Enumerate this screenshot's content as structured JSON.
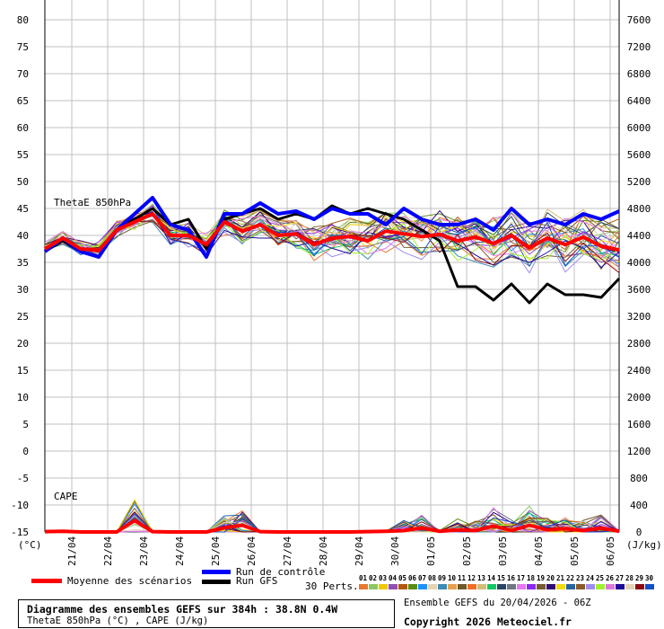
{
  "chart_data": {
    "type": "line",
    "title": "Diagramme des ensembles GEFS sur 384h : 38.8N 0.4W",
    "subtitle": "ThetaE 850hPa (°C) , CAPE (J/kg)",
    "run_info": "Ensemble GEFS du 20/04/2026 - 06Z",
    "copyright": "Copyright 2026 Meteociel.fr",
    "left_axis": {
      "label": "(°C)",
      "ylim": [
        -15,
        80
      ],
      "ticks": [
        80,
        75,
        70,
        65,
        60,
        55,
        50,
        45,
        40,
        35,
        30,
        25,
        20,
        15,
        10,
        5,
        0,
        -5,
        -10,
        -15
      ]
    },
    "right_axis": {
      "label": "(J/kg)",
      "ylim": [
        0,
        7600
      ],
      "ticks": [
        7600,
        7200,
        6800,
        6400,
        6000,
        5600,
        5200,
        4800,
        4400,
        4000,
        3600,
        3200,
        2800,
        2400,
        2000,
        1600,
        1200,
        800,
        400,
        0
      ]
    },
    "x_labels": [
      "21/04",
      "22/04",
      "23/04",
      "24/04",
      "25/04",
      "26/04",
      "27/04",
      "28/04",
      "29/04",
      "30/04",
      "01/05",
      "02/05",
      "03/05",
      "04/05",
      "05/05",
      "06/05"
    ],
    "x_step_hours": 12,
    "grid": true,
    "annotations": {
      "thetae": "ThetaE 850hPa",
      "cape": "CAPE"
    },
    "series": [
      {
        "name": "Moyenne des scénarios",
        "color": "#ff0000",
        "variable": "thetae",
        "values": [
          37.5,
          39.5,
          37.5,
          37.2,
          41,
          42.5,
          44,
          40,
          40,
          38.3,
          42.5,
          40.8,
          42,
          40,
          40.3,
          38.3,
          39.5,
          39.8,
          39,
          40.8,
          40.3,
          39.8,
          40.2,
          39,
          39.7,
          38.5,
          40,
          37.7,
          39.5,
          38.3,
          39.7,
          38,
          37.3
        ]
      },
      {
        "name": "Run de contrôle",
        "color": "#0000ff",
        "variable": "thetae",
        "values": [
          37,
          39.5,
          37,
          36,
          41,
          44,
          47,
          42,
          41,
          36,
          44,
          44,
          46,
          44,
          44.5,
          43,
          45,
          44,
          44,
          42,
          45,
          43,
          42,
          42,
          43,
          41,
          45,
          42,
          43,
          42,
          44,
          43,
          44.5
        ]
      },
      {
        "name": "Run GFS",
        "color": "#000000",
        "variable": "thetae",
        "values": [
          37,
          39,
          37,
          36,
          41,
          43,
          45,
          42,
          43,
          37.5,
          43,
          44,
          45,
          43,
          44,
          43,
          45.5,
          44,
          45,
          44,
          43,
          41,
          39,
          30.5,
          30.5,
          28,
          31,
          27.5,
          31,
          29,
          29,
          28.5,
          32
        ]
      },
      {
        "name": "Moyenne des scénarios CAPE",
        "color": "#ff0000",
        "variable": "cape",
        "values": [
          5,
          10,
          0,
          0,
          0,
          170,
          5,
          0,
          0,
          0,
          60,
          100,
          5,
          0,
          0,
          0,
          0,
          0,
          5,
          10,
          20,
          60,
          10,
          30,
          20,
          90,
          20,
          100,
          30,
          50,
          20,
          60,
          10
        ]
      }
    ],
    "legend": {
      "mean": "Moyenne des scénarios",
      "control": "Run de contrôle",
      "gfs": "Run GFS",
      "perts": "30 Perts.",
      "members": [
        "01",
        "02",
        "03",
        "04",
        "05",
        "06",
        "07",
        "08",
        "09",
        "10",
        "11",
        "12",
        "13",
        "14",
        "15",
        "16",
        "17",
        "18",
        "19",
        "20",
        "21",
        "22",
        "23",
        "24",
        "25",
        "26",
        "27",
        "28",
        "29",
        "30"
      ],
      "member_colors": [
        "#e87830",
        "#8cc864",
        "#f0c800",
        "#9050b0",
        "#b05a10",
        "#5a8c14",
        "#1e90ff",
        "#e6d2b4",
        "#3c8cb4",
        "#e6a050",
        "#6e5a28",
        "#f06e28",
        "#d2be78",
        "#14c864",
        "#284664",
        "#6e7882",
        "#e678f0",
        "#8c28f0",
        "#785a32",
        "#320a78",
        "#f0dc14",
        "#2864a0",
        "#8c5a28",
        "#a08cf0",
        "#a0f032",
        "#dc78dc",
        "#1e0a96",
        "#e6d2b4",
        "#8c0a14",
        "#1450c8"
      ]
    }
  }
}
